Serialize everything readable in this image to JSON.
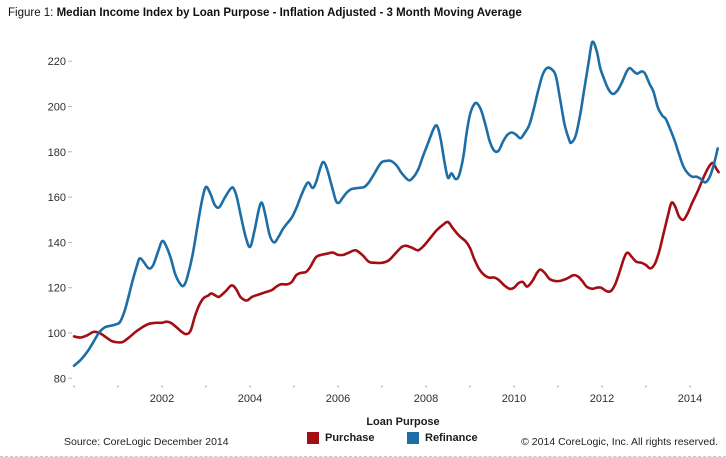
{
  "figure": {
    "label": "Figure 1:",
    "title": "Median Income Index by Loan Purpose - Inflation Adjusted - 3 Month Moving Average"
  },
  "footer": {
    "legend_title": "Loan Purpose",
    "source": "Source: CoreLogic December 2014",
    "copyright": "© 2014 CoreLogic, Inc. All rights reserved.",
    "legend": [
      {
        "label": "Purchase",
        "color": "#a30e13"
      },
      {
        "label": "Refinance",
        "color": "#1e6ea6"
      }
    ]
  },
  "chart_data": {
    "type": "line",
    "title": "Median Income Index by Loan Purpose - Inflation Adjusted - 3 Month Moving Average",
    "xlabel": "",
    "ylabel": "",
    "grid": false,
    "legend_position": "bottom",
    "x_axis": {
      "range": [
        2000,
        2014.75
      ],
      "label_ticks": [
        2002,
        2004,
        2006,
        2008,
        2010,
        2012,
        2014
      ],
      "minor_ticks": [
        2000,
        2001,
        2002,
        2003,
        2004,
        2005,
        2006,
        2007,
        2008,
        2009,
        2010,
        2011,
        2012,
        2013,
        2014
      ]
    },
    "y_axis": {
      "range": [
        76,
        232
      ],
      "ticks": [
        80,
        100,
        120,
        140,
        160,
        180,
        200,
        220
      ]
    },
    "series": [
      {
        "name": "Purchase",
        "color": "#a30e13",
        "points": [
          [
            2000.0,
            98.5
          ],
          [
            2000.15,
            98
          ],
          [
            2000.3,
            99
          ],
          [
            2000.45,
            100.5
          ],
          [
            2000.58,
            100
          ],
          [
            2000.7,
            98.5
          ],
          [
            2000.85,
            96.5
          ],
          [
            2000.95,
            96
          ],
          [
            2001.1,
            96
          ],
          [
            2001.25,
            98
          ],
          [
            2001.4,
            100.5
          ],
          [
            2001.55,
            102.5
          ],
          [
            2001.7,
            104
          ],
          [
            2001.85,
            104.5
          ],
          [
            2002.0,
            104.5
          ],
          [
            2002.1,
            105
          ],
          [
            2002.2,
            104.5
          ],
          [
            2002.33,
            102.5
          ],
          [
            2002.45,
            100.5
          ],
          [
            2002.55,
            99.5
          ],
          [
            2002.65,
            101
          ],
          [
            2002.75,
            107.5
          ],
          [
            2002.85,
            112.5
          ],
          [
            2002.95,
            115.5
          ],
          [
            2003.05,
            116.5
          ],
          [
            2003.12,
            117.5
          ],
          [
            2003.22,
            116.5
          ],
          [
            2003.3,
            116
          ],
          [
            2003.45,
            118.5
          ],
          [
            2003.58,
            121
          ],
          [
            2003.68,
            119.5
          ],
          [
            2003.78,
            116
          ],
          [
            2003.88,
            114.5
          ],
          [
            2003.95,
            114.5
          ],
          [
            2004.05,
            116
          ],
          [
            2004.2,
            117
          ],
          [
            2004.35,
            118
          ],
          [
            2004.5,
            119
          ],
          [
            2004.6,
            120.5
          ],
          [
            2004.7,
            121.5
          ],
          [
            2004.85,
            121.5
          ],
          [
            2004.95,
            122.5
          ],
          [
            2005.05,
            125.5
          ],
          [
            2005.15,
            126.5
          ],
          [
            2005.28,
            127
          ],
          [
            2005.38,
            129.5
          ],
          [
            2005.5,
            133.5
          ],
          [
            2005.62,
            134.5
          ],
          [
            2005.75,
            135
          ],
          [
            2005.88,
            135.5
          ],
          [
            2006.0,
            134.5
          ],
          [
            2006.12,
            134.5
          ],
          [
            2006.25,
            135.5
          ],
          [
            2006.4,
            136.5
          ],
          [
            2006.55,
            134.5
          ],
          [
            2006.7,
            131.5
          ],
          [
            2006.85,
            131
          ],
          [
            2007.0,
            131
          ],
          [
            2007.15,
            132
          ],
          [
            2007.3,
            135
          ],
          [
            2007.45,
            138
          ],
          [
            2007.55,
            138.5
          ],
          [
            2007.7,
            137.5
          ],
          [
            2007.82,
            136.5
          ],
          [
            2007.95,
            138.5
          ],
          [
            2008.1,
            142
          ],
          [
            2008.25,
            145.5
          ],
          [
            2008.4,
            148
          ],
          [
            2008.5,
            149
          ],
          [
            2008.6,
            146.5
          ],
          [
            2008.75,
            143
          ],
          [
            2008.9,
            140.5
          ],
          [
            2009.0,
            137.5
          ],
          [
            2009.1,
            132.5
          ],
          [
            2009.2,
            128.5
          ],
          [
            2009.3,
            126
          ],
          [
            2009.42,
            124.5
          ],
          [
            2009.55,
            124.5
          ],
          [
            2009.65,
            123.5
          ],
          [
            2009.78,
            121
          ],
          [
            2009.9,
            119.5
          ],
          [
            2010.0,
            120
          ],
          [
            2010.1,
            122
          ],
          [
            2010.2,
            122.5
          ],
          [
            2010.3,
            120.5
          ],
          [
            2010.42,
            123
          ],
          [
            2010.52,
            126.5
          ],
          [
            2010.6,
            128
          ],
          [
            2010.7,
            126.5
          ],
          [
            2010.8,
            124
          ],
          [
            2010.92,
            123
          ],
          [
            2011.05,
            123
          ],
          [
            2011.2,
            124
          ],
          [
            2011.35,
            125.5
          ],
          [
            2011.45,
            125
          ],
          [
            2011.55,
            123
          ],
          [
            2011.65,
            120.5
          ],
          [
            2011.78,
            119.5
          ],
          [
            2011.88,
            120
          ],
          [
            2011.98,
            120
          ],
          [
            2012.1,
            118.5
          ],
          [
            2012.2,
            118.5
          ],
          [
            2012.3,
            121.5
          ],
          [
            2012.4,
            127
          ],
          [
            2012.5,
            133
          ],
          [
            2012.58,
            135.5
          ],
          [
            2012.68,
            133.5
          ],
          [
            2012.78,
            131.5
          ],
          [
            2012.9,
            131
          ],
          [
            2013.0,
            130
          ],
          [
            2013.1,
            128.5
          ],
          [
            2013.2,
            130.5
          ],
          [
            2013.3,
            136
          ],
          [
            2013.4,
            144
          ],
          [
            2013.5,
            152
          ],
          [
            2013.58,
            157.5
          ],
          [
            2013.66,
            156
          ],
          [
            2013.75,
            151.5
          ],
          [
            2013.85,
            150
          ],
          [
            2013.95,
            153
          ],
          [
            2014.05,
            157.5
          ],
          [
            2014.15,
            161.5
          ],
          [
            2014.25,
            166
          ],
          [
            2014.35,
            170.5
          ],
          [
            2014.45,
            174
          ],
          [
            2014.52,
            175
          ],
          [
            2014.6,
            172.5
          ],
          [
            2014.65,
            171
          ]
        ]
      },
      {
        "name": "Refinance",
        "color": "#1e6ea6",
        "points": [
          [
            2000.0,
            85.5
          ],
          [
            2000.17,
            88.5
          ],
          [
            2000.33,
            92.5
          ],
          [
            2000.5,
            98
          ],
          [
            2000.58,
            100.5
          ],
          [
            2000.7,
            102.5
          ],
          [
            2000.83,
            103.2
          ],
          [
            2000.95,
            103.8
          ],
          [
            2001.05,
            105
          ],
          [
            2001.17,
            111
          ],
          [
            2001.33,
            123
          ],
          [
            2001.45,
            131
          ],
          [
            2001.5,
            133
          ],
          [
            2001.58,
            131.5
          ],
          [
            2001.7,
            128.5
          ],
          [
            2001.8,
            130
          ],
          [
            2001.92,
            136.5
          ],
          [
            2002.0,
            140.5
          ],
          [
            2002.08,
            139
          ],
          [
            2002.2,
            133
          ],
          [
            2002.3,
            126
          ],
          [
            2002.42,
            121.5
          ],
          [
            2002.5,
            121
          ],
          [
            2002.58,
            125
          ],
          [
            2002.7,
            135
          ],
          [
            2002.83,
            150
          ],
          [
            2002.92,
            159.5
          ],
          [
            2003.0,
            164.5
          ],
          [
            2003.1,
            161.5
          ],
          [
            2003.2,
            156.5
          ],
          [
            2003.3,
            155.5
          ],
          [
            2003.42,
            159.5
          ],
          [
            2003.55,
            163.5
          ],
          [
            2003.62,
            164
          ],
          [
            2003.7,
            160
          ],
          [
            2003.8,
            151
          ],
          [
            2003.9,
            142.5
          ],
          [
            2004.0,
            138
          ],
          [
            2004.1,
            145
          ],
          [
            2004.2,
            154.5
          ],
          [
            2004.27,
            157.5
          ],
          [
            2004.35,
            152
          ],
          [
            2004.45,
            143
          ],
          [
            2004.55,
            140
          ],
          [
            2004.65,
            142.5
          ],
          [
            2004.75,
            146
          ],
          [
            2004.85,
            148.5
          ],
          [
            2004.95,
            151
          ],
          [
            2005.05,
            155
          ],
          [
            2005.15,
            160
          ],
          [
            2005.25,
            164.5
          ],
          [
            2005.33,
            166.5
          ],
          [
            2005.42,
            164
          ],
          [
            2005.5,
            166.5
          ],
          [
            2005.6,
            173
          ],
          [
            2005.67,
            175.5
          ],
          [
            2005.75,
            172.5
          ],
          [
            2005.85,
            165.5
          ],
          [
            2005.95,
            158.5
          ],
          [
            2006.02,
            157.5
          ],
          [
            2006.1,
            159.5
          ],
          [
            2006.2,
            162
          ],
          [
            2006.3,
            163.5
          ],
          [
            2006.45,
            164
          ],
          [
            2006.6,
            164.5
          ],
          [
            2006.7,
            166.5
          ],
          [
            2006.83,
            170.5
          ],
          [
            2006.92,
            173.5
          ],
          [
            2007.0,
            175.5
          ],
          [
            2007.1,
            176
          ],
          [
            2007.2,
            176
          ],
          [
            2007.33,
            174
          ],
          [
            2007.45,
            170.5
          ],
          [
            2007.6,
            167.5
          ],
          [
            2007.7,
            168.5
          ],
          [
            2007.83,
            172.5
          ],
          [
            2007.92,
            177.5
          ],
          [
            2008.05,
            184
          ],
          [
            2008.17,
            190
          ],
          [
            2008.25,
            191.5
          ],
          [
            2008.33,
            186
          ],
          [
            2008.42,
            175.5
          ],
          [
            2008.5,
            168.5
          ],
          [
            2008.58,
            170.5
          ],
          [
            2008.67,
            168
          ],
          [
            2008.75,
            169.5
          ],
          [
            2008.85,
            178
          ],
          [
            2008.92,
            188
          ],
          [
            2009.0,
            196.5
          ],
          [
            2009.08,
            200.5
          ],
          [
            2009.15,
            201.5
          ],
          [
            2009.25,
            198.5
          ],
          [
            2009.35,
            192
          ],
          [
            2009.45,
            184.5
          ],
          [
            2009.55,
            180.5
          ],
          [
            2009.65,
            180.5
          ],
          [
            2009.75,
            184.5
          ],
          [
            2009.85,
            187.5
          ],
          [
            2009.95,
            188.5
          ],
          [
            2010.05,
            187.5
          ],
          [
            2010.15,
            186
          ],
          [
            2010.25,
            188.5
          ],
          [
            2010.35,
            192
          ],
          [
            2010.45,
            199
          ],
          [
            2010.55,
            207
          ],
          [
            2010.65,
            214
          ],
          [
            2010.75,
            217
          ],
          [
            2010.85,
            216.5
          ],
          [
            2010.95,
            213.5
          ],
          [
            2011.05,
            203
          ],
          [
            2011.15,
            192
          ],
          [
            2011.25,
            185.5
          ],
          [
            2011.3,
            184
          ],
          [
            2011.4,
            187
          ],
          [
            2011.5,
            196
          ],
          [
            2011.6,
            208
          ],
          [
            2011.7,
            220
          ],
          [
            2011.78,
            228.5
          ],
          [
            2011.88,
            224.5
          ],
          [
            2011.96,
            217
          ],
          [
            2012.05,
            212
          ],
          [
            2012.15,
            207.5
          ],
          [
            2012.25,
            205.5
          ],
          [
            2012.35,
            207
          ],
          [
            2012.45,
            210.5
          ],
          [
            2012.55,
            215
          ],
          [
            2012.63,
            217
          ],
          [
            2012.72,
            215.5
          ],
          [
            2012.8,
            214.5
          ],
          [
            2012.9,
            215.5
          ],
          [
            2012.98,
            214.5
          ],
          [
            2013.08,
            210
          ],
          [
            2013.17,
            206.5
          ],
          [
            2013.27,
            199.5
          ],
          [
            2013.37,
            196
          ],
          [
            2013.45,
            194.5
          ],
          [
            2013.55,
            190
          ],
          [
            2013.65,
            185
          ],
          [
            2013.75,
            179
          ],
          [
            2013.85,
            173.5
          ],
          [
            2013.95,
            170.5
          ],
          [
            2014.05,
            169
          ],
          [
            2014.15,
            169
          ],
          [
            2014.25,
            168
          ],
          [
            2014.35,
            166.5
          ],
          [
            2014.45,
            169
          ],
          [
            2014.55,
            175
          ],
          [
            2014.63,
            181.5
          ]
        ]
      }
    ]
  }
}
